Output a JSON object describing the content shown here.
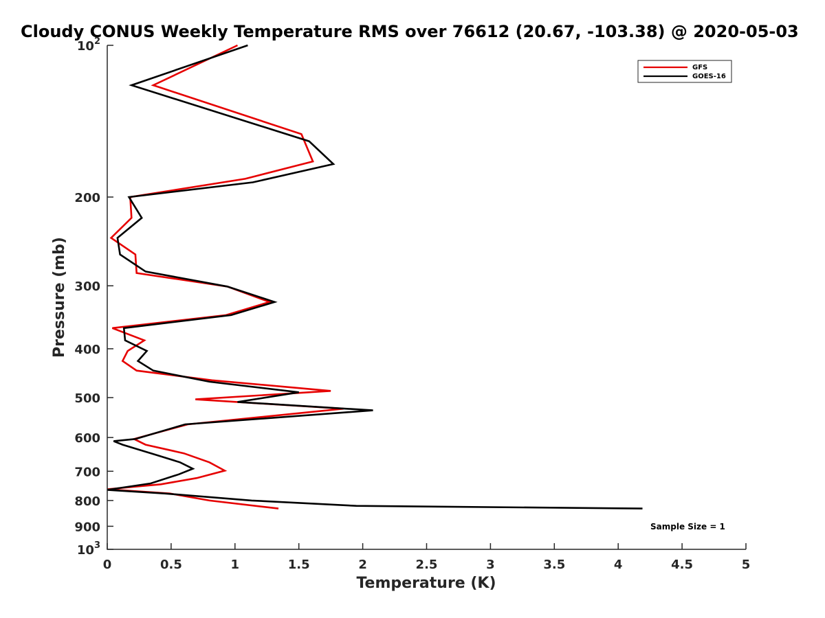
{
  "chart_data": {
    "type": "line",
    "title": "Cloudy CONUS Weekly Temperature RMS over 76612 (20.67, -103.38) @ 2020-05-03",
    "xlabel": "Temperature (K)",
    "ylabel": "Pressure (mb)",
    "xlim": [
      0,
      5
    ],
    "ylim": [
      100,
      1000
    ],
    "y_scale": "log",
    "y_reversed": true,
    "grid": false,
    "legend_position": "top-right",
    "x_ticks": [
      "0",
      "0.5",
      "1",
      "1.5",
      "2",
      "2.5",
      "3",
      "3.5",
      "4",
      "4.5",
      "5"
    ],
    "y_ticks": [
      {
        "base": "10",
        "exp": "2",
        "value": 100
      },
      {
        "base": "200",
        "exp": "",
        "value": 200
      },
      {
        "base": "300",
        "exp": "",
        "value": 300
      },
      {
        "base": "400",
        "exp": "",
        "value": 400
      },
      {
        "base": "500",
        "exp": "",
        "value": 500
      },
      {
        "base": "600",
        "exp": "",
        "value": 600
      },
      {
        "base": "700",
        "exp": "",
        "value": 700
      },
      {
        "base": "800",
        "exp": "",
        "value": 800
      },
      {
        "base": "900",
        "exp": "",
        "value": 900
      },
      {
        "base": "10",
        "exp": "3",
        "value": 1000
      }
    ],
    "annotation": "Sample Size = 1",
    "series": [
      {
        "name": "GFS",
        "color": "#e60000",
        "points": [
          [
            1.02,
            100
          ],
          [
            0.36,
            120
          ],
          [
            1.52,
            150
          ],
          [
            1.61,
            170
          ],
          [
            1.08,
            184
          ],
          [
            0.18,
            200
          ],
          [
            0.19,
            220
          ],
          [
            0.03,
            241
          ],
          [
            0.22,
            260
          ],
          [
            0.23,
            283
          ],
          [
            0.94,
            301
          ],
          [
            1.27,
            323
          ],
          [
            0.93,
            343
          ],
          [
            0.04,
            364
          ],
          [
            0.29,
            385
          ],
          [
            0.16,
            404
          ],
          [
            0.12,
            423
          ],
          [
            0.23,
            442
          ],
          [
            0.82,
            462
          ],
          [
            1.75,
            485
          ],
          [
            0.69,
            504
          ],
          [
            1.85,
            526
          ],
          [
            0.63,
            565
          ],
          [
            0.21,
            604
          ],
          [
            0.3,
            620
          ],
          [
            0.6,
            645
          ],
          [
            0.8,
            672
          ],
          [
            0.92,
            698
          ],
          [
            0.7,
            722
          ],
          [
            0.42,
            743
          ],
          [
            0.0,
            760
          ],
          [
            0.49,
            775
          ],
          [
            0.8,
            800
          ],
          [
            1.34,
            830
          ]
        ]
      },
      {
        "name": "GOES-16",
        "color": "#000000",
        "points": [
          [
            1.1,
            100
          ],
          [
            0.19,
            120
          ],
          [
            1.58,
            155
          ],
          [
            1.77,
            172
          ],
          [
            1.14,
            187
          ],
          [
            0.17,
            200
          ],
          [
            0.27,
            220
          ],
          [
            0.08,
            241
          ],
          [
            0.1,
            260
          ],
          [
            0.3,
            281
          ],
          [
            0.94,
            301
          ],
          [
            1.31,
            323
          ],
          [
            0.97,
            343
          ],
          [
            0.13,
            364
          ],
          [
            0.14,
            385
          ],
          [
            0.31,
            404
          ],
          [
            0.24,
            423
          ],
          [
            0.36,
            442
          ],
          [
            0.8,
            465
          ],
          [
            1.5,
            488
          ],
          [
            1.02,
            510
          ],
          [
            2.08,
            530
          ],
          [
            0.61,
            565
          ],
          [
            0.22,
            604
          ],
          [
            0.05,
            610
          ],
          [
            0.12,
            620
          ],
          [
            0.37,
            648
          ],
          [
            0.57,
            672
          ],
          [
            0.67,
            692
          ],
          [
            0.56,
            710
          ],
          [
            0.34,
            740
          ],
          [
            0.0,
            762
          ],
          [
            0.45,
            775
          ],
          [
            1.13,
            800
          ],
          [
            1.95,
            820
          ],
          [
            4.19,
            830
          ]
        ]
      }
    ]
  }
}
